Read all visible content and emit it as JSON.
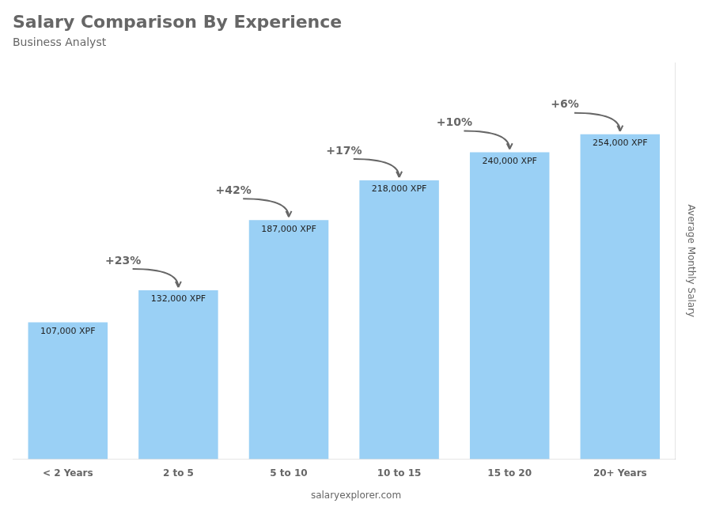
{
  "chart_data": {
    "type": "bar",
    "title": "Salary Comparison By Experience",
    "subtitle": "Business Analyst",
    "ylabel": "Average Monthly Salary",
    "categories": [
      "< 2 Years",
      "2 to 5",
      "5 to 10",
      "10 to 15",
      "15 to 20",
      "20+ Years"
    ],
    "values": [
      107000,
      132000,
      187000,
      218000,
      240000,
      254000
    ],
    "value_labels": [
      "107,000 XPF",
      "132,000 XPF",
      "187,000 XPF",
      "218,000 XPF",
      "240,000 XPF",
      "254,000 XPF"
    ],
    "data_labels": true,
    "annotations": [
      {
        "from": "< 2 Years",
        "to": "2 to 5",
        "text": "+23%"
      },
      {
        "from": "2 to 5",
        "to": "5 to 10",
        "text": "+42%"
      },
      {
        "from": "5 to 10",
        "to": "10 to 15",
        "text": "+17%"
      },
      {
        "from": "10 to 15",
        "to": "15 to 20",
        "text": "+10%"
      },
      {
        "from": "15 to 20",
        "to": "20+ Years",
        "text": "+6%"
      }
    ],
    "footer": "salaryexplorer.com",
    "ylim": [
      0,
      310000
    ],
    "tick_labels": "x",
    "grid": false
  }
}
